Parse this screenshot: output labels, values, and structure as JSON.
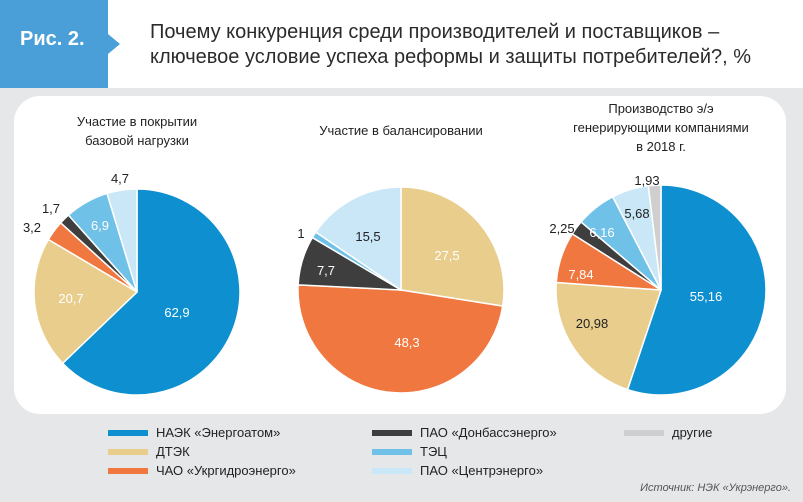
{
  "figure_label": "Рис. 2.",
  "title_line1": "Почему конкуренция среди производителей и поставщиков –",
  "title_line2": "ключевое условие успеха реформы и защиты потребителей?, %",
  "colors": {
    "badge": "#4a9fd8",
    "enerhoatom": "#0d8fd0",
    "dtek": "#e8cd8d",
    "ukrhydro": "#f0773f",
    "donbas": "#3e3e3e",
    "tec": "#6fc1e8",
    "centr": "#c9e7f7",
    "other": "#cfcfcf"
  },
  "chart_data": [
    {
      "type": "pie",
      "title_lines": [
        "Участие в покрытии",
        "базовой нагрузки"
      ],
      "slices": [
        {
          "key": "enerhoatom",
          "value": 62.9,
          "label": "62,9"
        },
        {
          "key": "dtek",
          "value": 20.7,
          "label": "20,7"
        },
        {
          "key": "ukrhydro",
          "value": 3.2,
          "label": "3,2"
        },
        {
          "key": "donbas",
          "value": 1.7,
          "label": "1,7"
        },
        {
          "key": "tec",
          "value": 6.9,
          "label": "6,9"
        },
        {
          "key": "centr",
          "value": 4.7,
          "label": "4,7"
        }
      ]
    },
    {
      "type": "pie",
      "title_lines": [
        "Участие в балансировании"
      ],
      "slices": [
        {
          "key": "dtek",
          "value": 27.5,
          "label": "27,5"
        },
        {
          "key": "ukrhydro",
          "value": 48.3,
          "label": "48,3"
        },
        {
          "key": "donbas",
          "value": 7.7,
          "label": "7,7"
        },
        {
          "key": "tec",
          "value": 1,
          "label": "1"
        },
        {
          "key": "centr",
          "value": 15.5,
          "label": "15,5"
        }
      ]
    },
    {
      "type": "pie",
      "title_lines": [
        "Производство э/э",
        "генерирующими компаниями",
        "в 2018 г."
      ],
      "slices": [
        {
          "key": "enerhoatom",
          "value": 55.16,
          "label": "55,16"
        },
        {
          "key": "dtek",
          "value": 20.98,
          "label": "20,98"
        },
        {
          "key": "ukrhydro",
          "value": 7.84,
          "label": "7,84"
        },
        {
          "key": "donbas",
          "value": 2.25,
          "label": "2,25"
        },
        {
          "key": "tec",
          "value": 6.16,
          "label": "6,16"
        },
        {
          "key": "centr",
          "value": 5.68,
          "label": "5,68"
        },
        {
          "key": "other",
          "value": 1.93,
          "label": "1,93"
        }
      ]
    }
  ],
  "legend": [
    {
      "key": "enerhoatom",
      "label": "НАЭК «Энергоатом»"
    },
    {
      "key": "dtek",
      "label": "ДТЭК"
    },
    {
      "key": "ukrhydro",
      "label": "ЧАО «Укргидроэнерго»"
    },
    {
      "key": "donbas",
      "label": "ПАО «Донбассэнерго»"
    },
    {
      "key": "tec",
      "label": "ТЭЦ"
    },
    {
      "key": "centr",
      "label": "ПАО «Центрэнерго»"
    },
    {
      "key": "other",
      "label": "другие"
    }
  ],
  "source": "Источник: НЭК «Укрэнерго»."
}
